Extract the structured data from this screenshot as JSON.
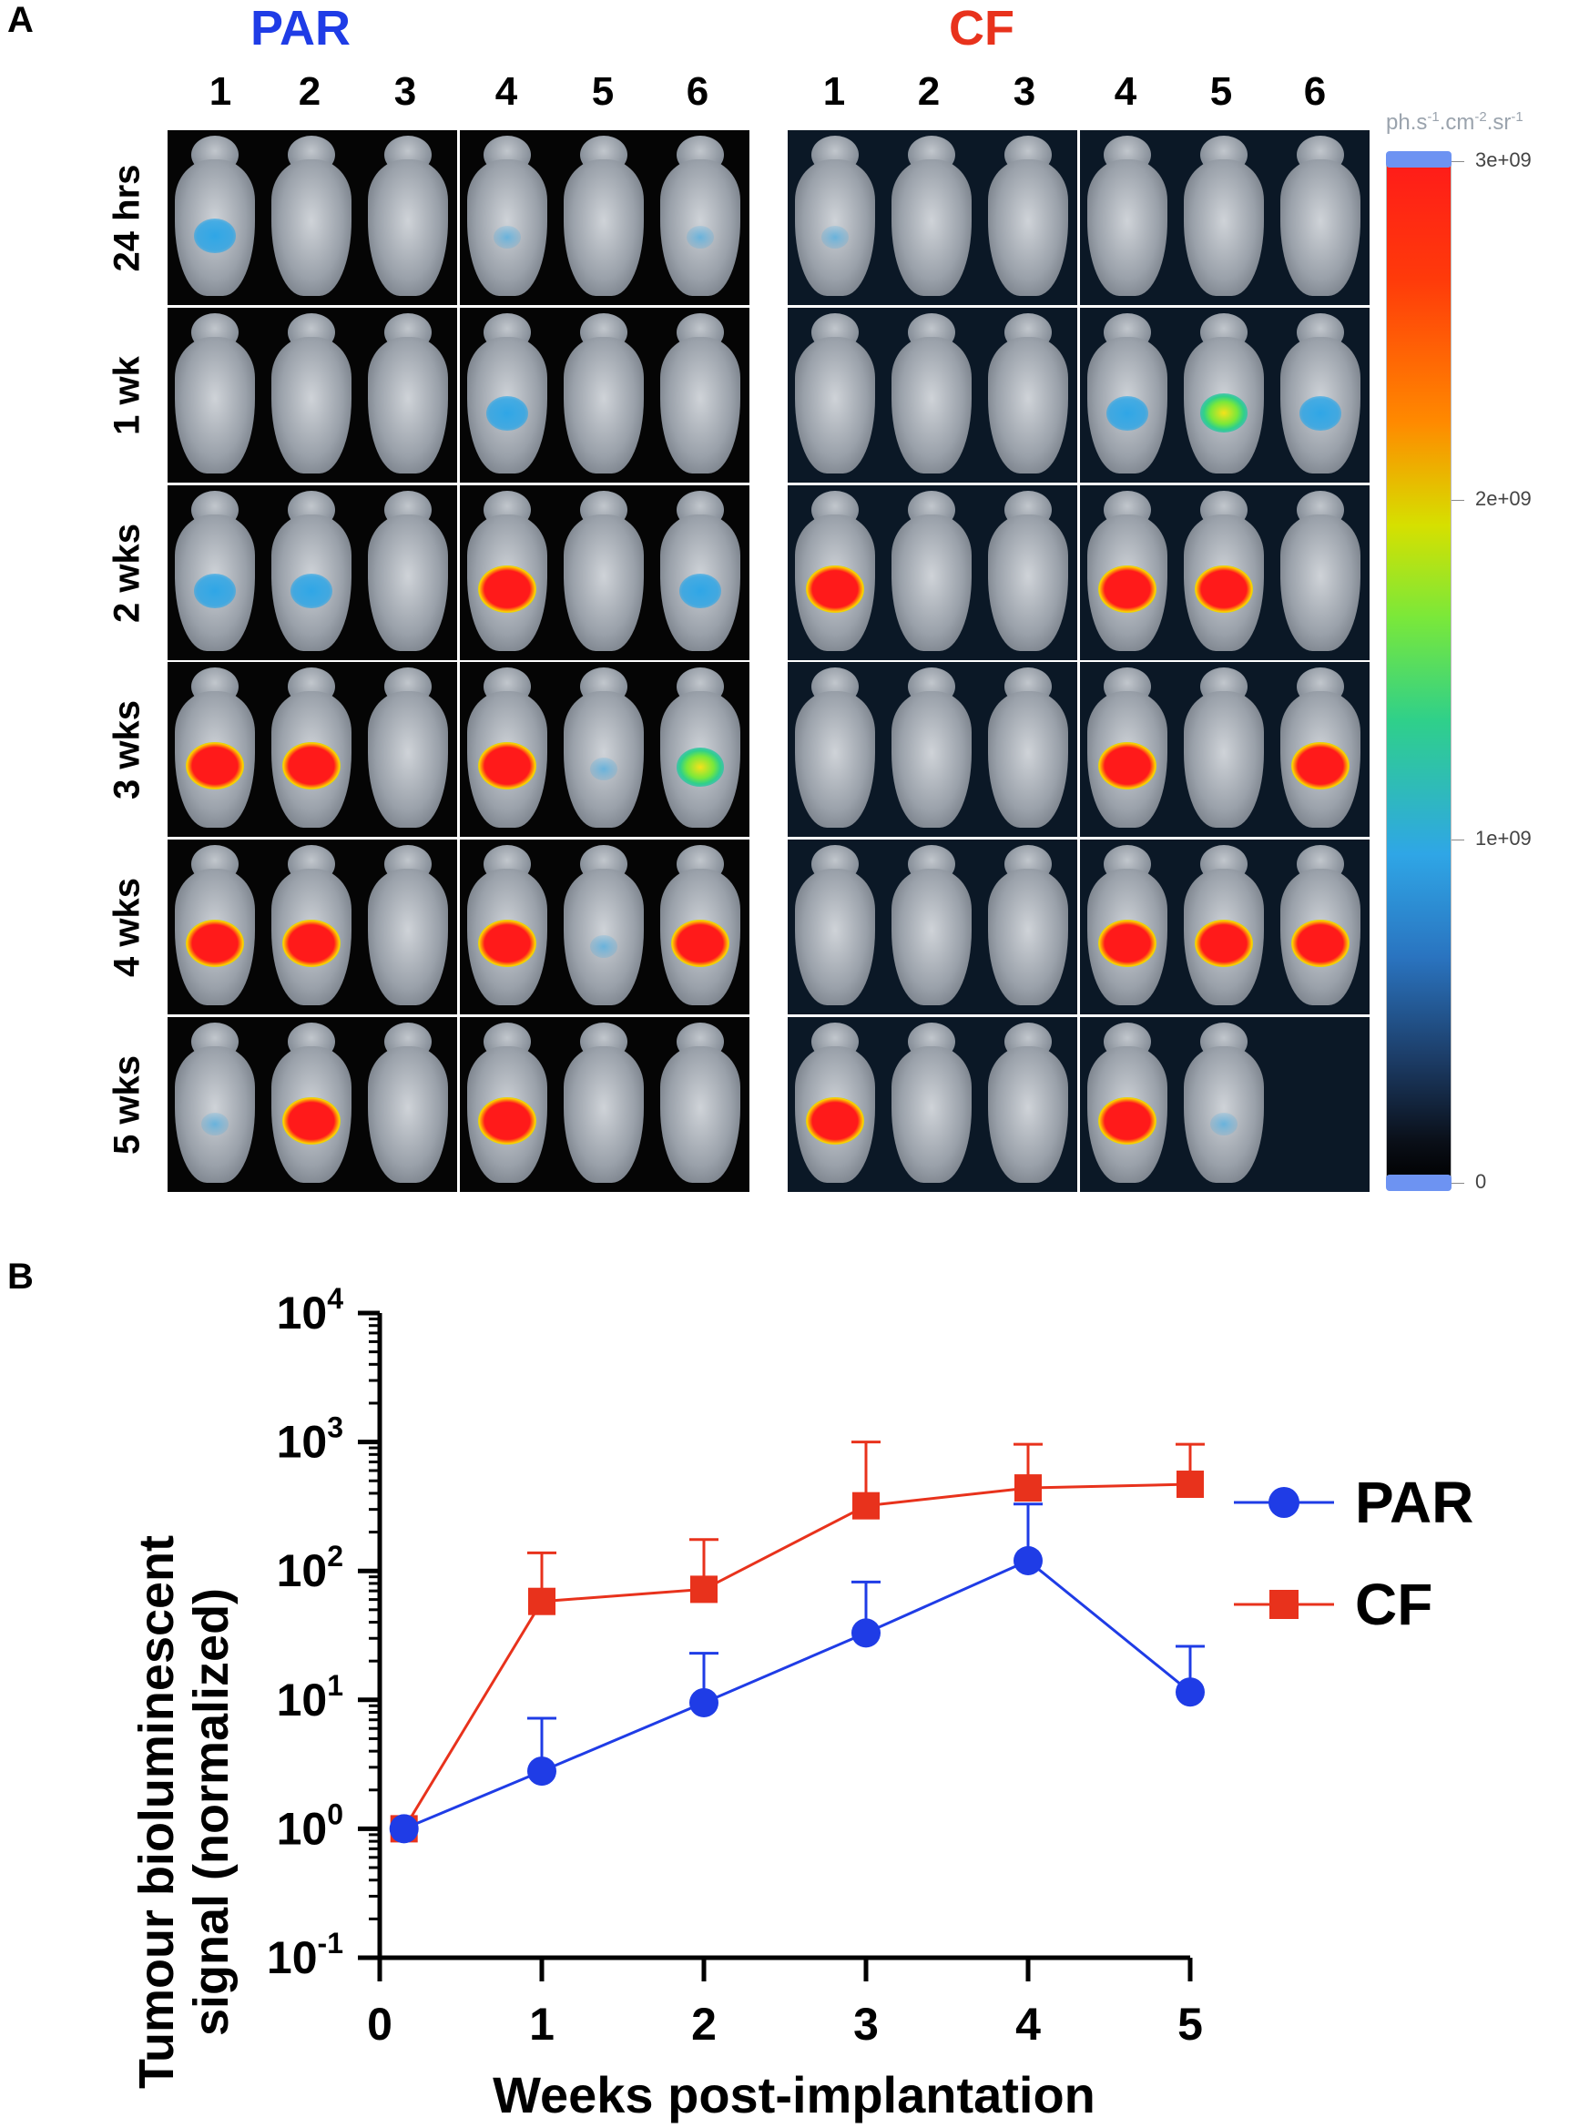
{
  "panel_a": {
    "letter": "A",
    "groups": [
      {
        "name": "PAR",
        "color": "#1f3ce6"
      },
      {
        "name": "CF",
        "color": "#e8321c"
      }
    ],
    "columns": [
      "1",
      "2",
      "3",
      "4",
      "5",
      "6"
    ],
    "rows": [
      "24 hrs",
      "1 wk",
      "2 wks",
      "3 wks",
      "4 wks",
      "5 wks"
    ],
    "colorbar": {
      "unit_prefix": "ph.s",
      "unit_parts": [
        {
          "base": "ph.s",
          "sup": "-1"
        },
        {
          "base": ".cm",
          "sup": "-2"
        },
        {
          "base": ".sr",
          "sup": "-1"
        }
      ],
      "ticks": [
        "3e+09",
        "2e+09",
        "1e+09",
        "0"
      ]
    }
  },
  "panel_b": {
    "letter": "B"
  },
  "chart_data": {
    "type": "line",
    "xlabel": "Weeks post-implantation",
    "ylabel_line1": "Tumour bioluminescent",
    "ylabel_line2": "signal (normalized)",
    "yscale": "log",
    "ylim": [
      0.1,
      10000
    ],
    "xlim": [
      0,
      5
    ],
    "x_ticks": [
      "0",
      "1",
      "2",
      "3",
      "4",
      "5"
    ],
    "y_ticks": [
      {
        "base": "10",
        "exp": "4",
        "value": 10000
      },
      {
        "base": "10",
        "exp": "3",
        "value": 1000
      },
      {
        "base": "10",
        "exp": "2",
        "value": 100
      },
      {
        "base": "10",
        "exp": "1",
        "value": 10
      },
      {
        "base": "10",
        "exp": "0",
        "value": 1
      },
      {
        "base": "10",
        "exp": "-1",
        "value": 0.1
      }
    ],
    "series": [
      {
        "name": "PAR",
        "color": "#1f3ce6",
        "marker": "circle",
        "x": [
          0.15,
          1,
          2,
          3,
          4,
          5
        ],
        "values": [
          1,
          2.8,
          9.5,
          33,
          120,
          11.5
        ],
        "error_upper": [
          1,
          7.2,
          23,
          82,
          330,
          26
        ]
      },
      {
        "name": "CF",
        "color": "#e8321c",
        "marker": "square",
        "x": [
          0.15,
          1,
          2,
          3,
          4,
          5
        ],
        "values": [
          1,
          58,
          72,
          320,
          440,
          470
        ],
        "error_upper": [
          1,
          138,
          175,
          1000,
          960,
          960
        ]
      }
    ],
    "legend_position": "right"
  }
}
